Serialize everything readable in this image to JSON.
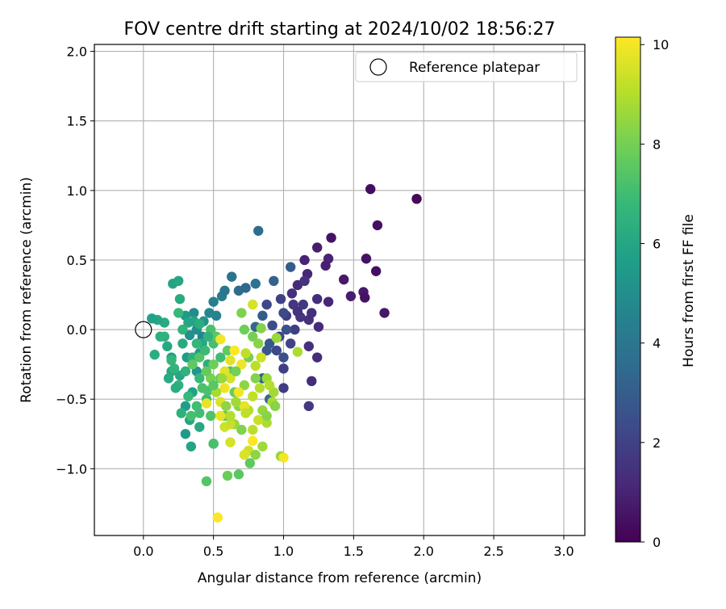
{
  "chart_data": {
    "type": "scatter",
    "title": "FOV centre drift starting at 2024/10/02 18:56:27",
    "xlabel": "Angular distance from reference (arcmin)",
    "ylabel": "Rotation from reference (arcmin)",
    "xlim": [
      -0.35,
      3.15
    ],
    "ylim": [
      -1.48,
      2.05
    ],
    "x_ticks": [
      0.0,
      0.5,
      1.0,
      1.5,
      2.0,
      2.5,
      3.0
    ],
    "x_tick_labels": [
      "0.0",
      "0.5",
      "1.0",
      "1.5",
      "2.0",
      "2.5",
      "3.0"
    ],
    "y_ticks": [
      -1.0,
      -0.5,
      0.0,
      0.5,
      1.0,
      1.5,
      2.0
    ],
    "y_tick_labels": [
      "−1.0",
      "−0.5",
      "0.0",
      "0.5",
      "1.0",
      "1.5",
      "2.0"
    ],
    "grid": true,
    "legend": {
      "placement": "top-right",
      "entries": [
        "Reference platepar"
      ]
    },
    "reference_point": {
      "x": 0.0,
      "y": 0.0
    },
    "colorbar": {
      "label": "Hours from first FF file",
      "colormap": "viridis",
      "range": [
        0,
        10.15
      ],
      "ticks": [
        0,
        2,
        4,
        6,
        8,
        10
      ],
      "tick_labels": [
        "0",
        "2",
        "4",
        "6",
        "8",
        "10"
      ]
    },
    "series": [
      {
        "points": [
          [
            1.62,
            1.01,
            0.3
          ],
          [
            1.95,
            0.94,
            0.2
          ],
          [
            1.67,
            0.75,
            0.4
          ],
          [
            1.34,
            0.66,
            0.5
          ],
          [
            1.59,
            0.51,
            0.5
          ],
          [
            1.66,
            0.42,
            0.4
          ],
          [
            1.72,
            0.12,
            0.6
          ],
          [
            1.57,
            0.27,
            0.7
          ],
          [
            1.48,
            0.24,
            0.8
          ],
          [
            1.43,
            0.36,
            0.7
          ],
          [
            1.58,
            0.23,
            0.5
          ],
          [
            1.24,
            0.59,
            0.8
          ],
          [
            1.32,
            0.51,
            1.0
          ],
          [
            1.3,
            0.46,
            0.9
          ],
          [
            1.15,
            0.5,
            1.0
          ],
          [
            1.17,
            0.4,
            1.1
          ],
          [
            1.1,
            0.32,
            1.2
          ],
          [
            1.32,
            0.2,
            1.1
          ],
          [
            1.24,
            0.22,
            1.3
          ],
          [
            1.15,
            0.35,
            1.5
          ],
          [
            1.2,
            0.12,
            1.4
          ],
          [
            1.12,
            0.09,
            1.6
          ],
          [
            1.07,
            0.18,
            1.6
          ],
          [
            1.02,
            0.1,
            1.8
          ],
          [
            1.25,
            0.02,
            1.2
          ],
          [
            1.18,
            -0.12,
            1.4
          ],
          [
            1.24,
            -0.2,
            1.3
          ],
          [
            1.2,
            -0.37,
            1.3
          ],
          [
            1.18,
            -0.55,
            1.7
          ],
          [
            1.0,
            -0.42,
            1.8
          ],
          [
            1.0,
            -0.28,
            1.9
          ],
          [
            0.97,
            -0.05,
            2.0
          ],
          [
            1.05,
            -0.1,
            2.1
          ],
          [
            1.08,
            0.0,
            1.9
          ],
          [
            0.98,
            0.22,
            2.0
          ],
          [
            0.88,
            0.18,
            2.2
          ],
          [
            1.14,
            0.18,
            1.7
          ],
          [
            1.06,
            0.26,
            1.4
          ],
          [
            1.0,
            0.12,
            2.3
          ],
          [
            0.92,
            0.03,
            2.4
          ],
          [
            0.95,
            -0.15,
            2.2
          ],
          [
            1.0,
            -0.2,
            2.5
          ],
          [
            1.1,
            0.13,
            1.5
          ],
          [
            1.18,
            0.07,
            1.4
          ],
          [
            1.02,
            0.0,
            2.6
          ],
          [
            0.9,
            -0.1,
            2.8
          ],
          [
            1.05,
            0.45,
            3.0
          ],
          [
            0.93,
            0.35,
            3.2
          ],
          [
            0.82,
            0.71,
            3.6
          ],
          [
            0.8,
            0.33,
            3.8
          ],
          [
            0.73,
            0.3,
            3.4
          ],
          [
            0.63,
            0.38,
            3.9
          ],
          [
            0.68,
            0.28,
            3.5
          ],
          [
            0.56,
            0.24,
            4.2
          ],
          [
            0.58,
            0.28,
            4.0
          ],
          [
            0.5,
            0.2,
            4.3
          ],
          [
            0.52,
            0.1,
            4.5
          ],
          [
            0.47,
            0.12,
            4.7
          ],
          [
            0.85,
            0.1,
            3.0
          ],
          [
            0.8,
            0.02,
            3.3
          ],
          [
            0.88,
            -0.15,
            2.8
          ],
          [
            0.85,
            -0.35,
            3.0
          ],
          [
            0.9,
            -0.5,
            3.5
          ],
          [
            0.5,
            -0.82,
            4.2
          ],
          [
            0.42,
            -0.05,
            4.6
          ],
          [
            0.36,
            0.12,
            4.9
          ],
          [
            0.43,
            0.06,
            5.2
          ],
          [
            0.38,
            0.0,
            5.0
          ],
          [
            0.33,
            -0.04,
            5.1
          ],
          [
            0.3,
            0.1,
            5.4
          ],
          [
            0.4,
            -0.17,
            5.5
          ],
          [
            0.31,
            -0.2,
            5.6
          ],
          [
            0.38,
            -0.3,
            5.3
          ],
          [
            0.35,
            -0.45,
            5.8
          ],
          [
            0.3,
            -0.55,
            5.7
          ],
          [
            0.34,
            -0.84,
            5.9
          ],
          [
            0.33,
            -0.65,
            6.0
          ],
          [
            0.3,
            -0.75,
            5.5
          ],
          [
            0.4,
            -0.7,
            6.1
          ],
          [
            0.26,
            -0.33,
            6.0
          ],
          [
            0.2,
            -0.2,
            5.8
          ],
          [
            0.17,
            -0.12,
            6.1
          ],
          [
            0.21,
            0.33,
            5.9
          ],
          [
            0.25,
            0.35,
            6.0
          ],
          [
            0.26,
            0.22,
            6.2
          ],
          [
            0.15,
            0.05,
            6.2
          ],
          [
            0.1,
            0.07,
            6.0
          ],
          [
            0.12,
            -0.05,
            6.4
          ],
          [
            0.06,
            0.08,
            5.8
          ],
          [
            0.08,
            -0.18,
            6.3
          ],
          [
            0.2,
            -0.3,
            6.1
          ],
          [
            0.25,
            -0.4,
            6.5
          ],
          [
            0.27,
            -0.6,
            6.4
          ],
          [
            0.23,
            -0.42,
            6.3
          ],
          [
            0.18,
            -0.35,
            6.2
          ],
          [
            0.3,
            -0.3,
            6.5
          ],
          [
            0.35,
            -0.2,
            6.4
          ],
          [
            0.28,
            -0.1,
            6.2
          ],
          [
            0.32,
            0.05,
            6.0
          ],
          [
            0.36,
            0.06,
            5.9
          ],
          [
            0.42,
            -0.1,
            6.0
          ],
          [
            0.46,
            -0.25,
            6.3
          ],
          [
            0.28,
            0.0,
            6.6
          ],
          [
            0.25,
            0.12,
            6.8
          ],
          [
            0.15,
            -0.05,
            6.5
          ],
          [
            0.2,
            -0.22,
            6.7
          ],
          [
            0.22,
            -0.28,
            6.6
          ],
          [
            0.4,
            -0.35,
            6.8
          ],
          [
            0.45,
            -0.5,
            6.9
          ],
          [
            0.38,
            -0.55,
            7.0
          ],
          [
            0.32,
            -0.48,
            6.8
          ],
          [
            0.34,
            -0.62,
            7.1
          ],
          [
            0.4,
            -0.6,
            7.0
          ],
          [
            0.48,
            -0.62,
            7.3
          ],
          [
            0.46,
            -0.44,
            7.2
          ],
          [
            0.55,
            -0.35,
            7.4
          ],
          [
            0.55,
            -0.2,
            7.0
          ],
          [
            0.5,
            -0.1,
            7.1
          ],
          [
            0.48,
            0.0,
            7.2
          ],
          [
            0.52,
            -0.05,
            7.5
          ],
          [
            0.6,
            -0.15,
            7.6
          ],
          [
            0.62,
            -0.3,
            7.3
          ],
          [
            0.45,
            -1.09,
            7.4
          ],
          [
            0.5,
            -0.82,
            7.2
          ],
          [
            0.58,
            -0.62,
            7.6
          ],
          [
            0.65,
            -0.45,
            7.8
          ],
          [
            0.7,
            0.12,
            8.1
          ],
          [
            0.72,
            0.0,
            7.9
          ],
          [
            0.78,
            -0.05,
            8.0
          ],
          [
            0.82,
            -0.1,
            8.3
          ],
          [
            0.75,
            -0.2,
            8.0
          ],
          [
            0.8,
            -0.35,
            8.2
          ],
          [
            0.72,
            -0.4,
            8.4
          ],
          [
            0.68,
            -0.55,
            8.3
          ],
          [
            0.65,
            -0.68,
            8.6
          ],
          [
            0.7,
            -0.72,
            8.2
          ],
          [
            0.85,
            -0.58,
            8.5
          ],
          [
            0.92,
            -0.52,
            8.8
          ],
          [
            0.95,
            -0.06,
            8.6
          ],
          [
            1.1,
            -0.16,
            8.9
          ],
          [
            0.93,
            -0.45,
            8.7
          ],
          [
            0.88,
            -0.67,
            8.9
          ],
          [
            0.83,
            -0.42,
            9.0
          ],
          [
            0.78,
            -0.48,
            9.2
          ],
          [
            0.75,
            -0.58,
            9.0
          ],
          [
            0.82,
            -0.65,
            9.3
          ],
          [
            0.78,
            -0.72,
            9.1
          ],
          [
            0.75,
            -0.87,
            9.4
          ],
          [
            0.72,
            -0.9,
            9.6
          ],
          [
            0.62,
            -0.81,
            9.5
          ],
          [
            0.58,
            -0.7,
            9.4
          ],
          [
            0.55,
            -0.62,
            9.8
          ],
          [
            0.55,
            -0.52,
            9.6
          ],
          [
            0.58,
            -0.42,
            9.9
          ],
          [
            0.62,
            -0.35,
            9.5
          ],
          [
            0.58,
            -0.3,
            9.7
          ],
          [
            0.55,
            -0.07,
            10.0
          ],
          [
            0.65,
            -0.15,
            10.1
          ],
          [
            0.7,
            -0.25,
            9.9
          ],
          [
            0.68,
            -0.45,
            10.0
          ],
          [
            0.72,
            -0.55,
            9.8
          ],
          [
            0.78,
            -0.8,
            10.1
          ],
          [
            0.62,
            -0.68,
            9.3
          ],
          [
            0.6,
            -1.05,
            7.8
          ],
          [
            0.68,
            -1.04,
            7.5
          ],
          [
            0.76,
            -0.96,
            7.6
          ],
          [
            0.8,
            -0.9,
            8.4
          ],
          [
            0.85,
            -0.84,
            8.7
          ],
          [
            0.98,
            -0.91,
            8.5
          ],
          [
            0.53,
            -1.35,
            10.1
          ],
          [
            1.0,
            -0.92,
            10.0
          ],
          [
            0.88,
            -0.62,
            8.3
          ],
          [
            0.78,
            0.18,
            9.5
          ],
          [
            0.84,
            0.01,
            8.2
          ],
          [
            0.73,
            -0.17,
            9.2
          ],
          [
            0.62,
            -0.22,
            9.7
          ],
          [
            0.45,
            -0.53,
            9.8
          ],
          [
            0.52,
            -0.45,
            8.8
          ],
          [
            0.56,
            -0.35,
            8.6
          ],
          [
            0.48,
            -0.35,
            8.1
          ],
          [
            0.66,
            -0.52,
            8.7
          ],
          [
            0.73,
            -0.6,
            9.2
          ],
          [
            0.62,
            -0.62,
            9.0
          ],
          [
            0.59,
            -0.55,
            8.4
          ],
          [
            0.66,
            -0.3,
            8.0
          ],
          [
            0.8,
            -0.26,
            9.1
          ],
          [
            0.84,
            -0.2,
            9.4
          ],
          [
            0.88,
            -0.35,
            8.6
          ],
          [
            0.9,
            -0.4,
            9.0
          ],
          [
            0.94,
            -0.55,
            8.3
          ],
          [
            0.4,
            -0.2,
            7.4
          ],
          [
            0.35,
            -0.25,
            7.6
          ],
          [
            0.42,
            -0.42,
            7.2
          ],
          [
            0.5,
            -0.4,
            7.5
          ],
          [
            0.45,
            -0.3,
            7.7
          ],
          [
            0.5,
            -0.25,
            7.9
          ],
          [
            0.44,
            -0.15,
            6.9
          ],
          [
            0.38,
            -0.1,
            6.7
          ],
          [
            0.46,
            -0.05,
            6.5
          ],
          [
            0.4,
            0.04,
            6.3
          ]
        ]
      }
    ]
  }
}
